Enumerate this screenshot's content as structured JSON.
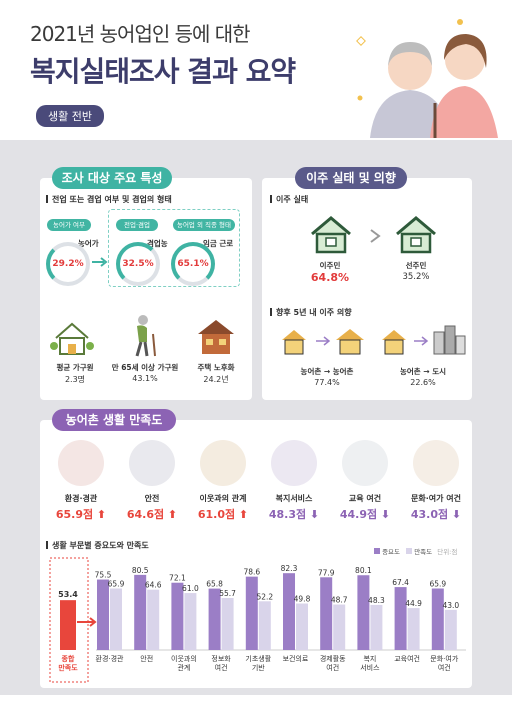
{
  "header": {
    "title_line1": "2021년 농어업인 등에 대한",
    "title_line2": "복지실태조사 결과 요약",
    "badge": "생활 전반"
  },
  "survey": {
    "title": "조사 대상 주요 특성",
    "subtitle": "전업 또는 겸업 여부 및 겸업의 형태",
    "tag_farm": "농어가 여부",
    "tag_combined": "전업·겸업",
    "tag_type": "농어업 외 직종 형태",
    "farm_label": "농어가",
    "farm_value": "29.2%",
    "combined_label": "겸업농",
    "combined_value": "32.5%",
    "wage_label": "임금 근로",
    "wage_value": "65.1%",
    "stats": [
      {
        "label": "평균 가구원",
        "value": "2.3명"
      },
      {
        "label": "만 65세 이상 가구원",
        "value": "43.1%"
      },
      {
        "label": "주택 노후화",
        "value": "24.2년"
      }
    ]
  },
  "migration": {
    "title": "이주 실태 및 의향",
    "actual_title": "이주 실태",
    "migrant_label": "이주민",
    "migrant_value": "64.8%",
    "native_label": "선주민",
    "native_value": "35.2%",
    "intent_title": "향후 5년 내 이주 의향",
    "rural_rural_label": "농어촌 → 농어촌",
    "rural_rural_value": "77.4%",
    "rural_city_label": "농어촌 → 도시",
    "rural_city_value": "22.6%"
  },
  "satisfaction": {
    "title": "농어촌 생활 만족도",
    "items": [
      {
        "name": "환경·경관",
        "score": "65.9점",
        "dir": "up"
      },
      {
        "name": "안전",
        "score": "64.6점",
        "dir": "up"
      },
      {
        "name": "이웃과의 관계",
        "score": "61.0점",
        "dir": "up"
      },
      {
        "name": "복지서비스",
        "score": "48.3점",
        "dir": "down"
      },
      {
        "name": "교육 여건",
        "score": "44.9점",
        "dir": "down"
      },
      {
        "name": "문화·여가 여건",
        "score": "43.0점",
        "dir": "down"
      }
    ],
    "colors": {
      "up": "#e8463c",
      "down": "#8c63b4"
    }
  },
  "chart_data": {
    "type": "bar",
    "title": "생활 부문별 중요도와 만족도",
    "unit": "단위:점",
    "overall": {
      "label": "종합 만족도",
      "value": 53.4
    },
    "categories": [
      "환경·경관",
      "안전",
      "이웃과의 관계",
      "정보화 여건",
      "기초생활 기반",
      "보건의료",
      "경제활동 여건",
      "복지 서비스",
      "교육여건",
      "문화·여가 여건"
    ],
    "series": [
      {
        "name": "중요도",
        "color": "#9b7ec6",
        "values": [
          75.5,
          80.5,
          72.1,
          65.8,
          78.6,
          82.3,
          77.9,
          80.1,
          67.4,
          65.9
        ]
      },
      {
        "name": "만족도",
        "color": "#d9d4ea",
        "values": [
          65.9,
          64.6,
          61.0,
          55.7,
          52.2,
          49.8,
          48.7,
          48.3,
          44.9,
          43.0
        ]
      }
    ],
    "ylim": [
      0,
      90
    ],
    "overall_color": "#e8463c"
  }
}
